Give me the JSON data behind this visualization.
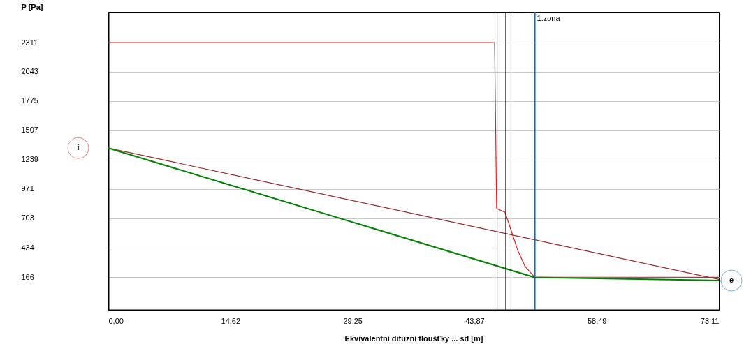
{
  "chart_data": {
    "type": "line",
    "xlabel": "Ekvivalentní difuzní tloušťky ... sd [m]",
    "ylabel": "P [Pa]",
    "xlim": [
      0,
      73.11
    ],
    "ylim": [
      -134,
      2592
    ],
    "xticks": [
      {
        "value": 0,
        "label": "0,00"
      },
      {
        "value": 14.62,
        "label": "14,62"
      },
      {
        "value": 29.25,
        "label": "29,25"
      },
      {
        "value": 43.87,
        "label": "43,87"
      },
      {
        "value": 58.49,
        "label": "58,49"
      },
      {
        "value": 73.11,
        "label": "73,11"
      }
    ],
    "yticks": [
      166,
      434,
      703,
      971,
      1239,
      1507,
      1775,
      2043,
      2311
    ],
    "grid": "y",
    "marker": "none",
    "line_style": "solid",
    "series": [
      {
        "color": "#e02020",
        "x": [
          0,
          46.26,
          46.5,
          47.5,
          48.2,
          49.05,
          49.9,
          51.03,
          73.11
        ],
        "values": [
          2311,
          2311,
          793,
          759,
          602,
          405,
          264,
          166,
          164
        ]
      },
      {
        "color": "#962828",
        "x": [
          0,
          73.11
        ],
        "values": [
          1346,
          144
        ]
      },
      {
        "color": "#008000",
        "x": [
          0,
          51.03,
          73.11
        ],
        "values": [
          1346,
          163,
          134
        ]
      }
    ],
    "ref_lines": [
      {
        "axis": "x",
        "value": 46.3,
        "label": null,
        "color": "#000000"
      },
      {
        "axis": "x",
        "value": 46.56,
        "label": null,
        "color": "#000000"
      },
      {
        "axis": "x",
        "value": 47.59,
        "label": null,
        "color": "#000000"
      },
      {
        "axis": "x",
        "value": 48.22,
        "label": null,
        "color": "#000000"
      },
      {
        "axis": "x",
        "value": 51.07,
        "label": "1.zona",
        "color": "#1a64a0"
      }
    ],
    "annotations": [
      "i",
      "e"
    ]
  }
}
